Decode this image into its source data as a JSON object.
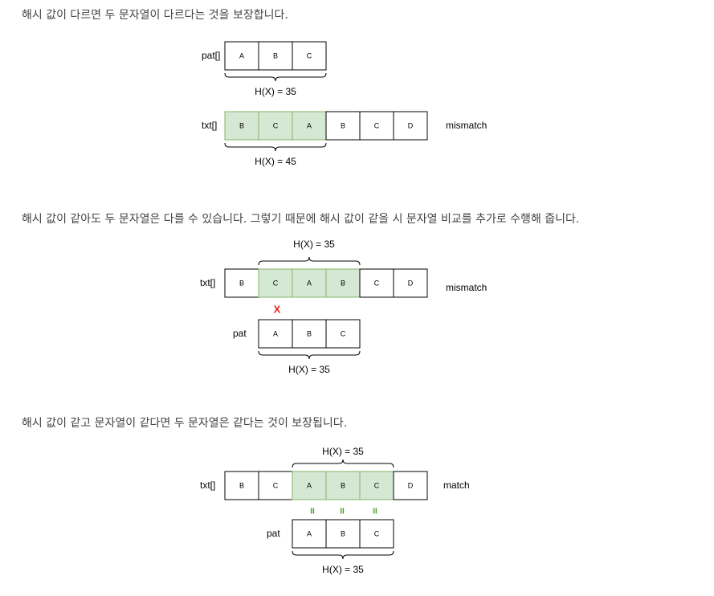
{
  "paragraphs": {
    "p1": "해시 값이 다르면 두 문자열이 다르다는 것을 보장합니다.",
    "p2": "해시 값이 같아도 두 문자열은 다를 수 있습니다. 그렇기 때문에 해시 값이 같을 시 문자열 비교를 추가로 수행해 줍니다.",
    "p3": "해시 값이 같고 문자열이 같다면 두 문자열은 같다는 것이 보장됩니다."
  },
  "colors": {
    "highlight": "#d5e8d4",
    "highlight_border": "#82b366",
    "mismatch_mark": "#e0261c",
    "equal_mark": "#4b9e1f"
  },
  "diagram1": {
    "pat_label": "pat[]",
    "pat_cells": [
      "A",
      "B",
      "C"
    ],
    "pat_hash": "H(X) = 35",
    "txt_label": "txt[]",
    "txt_cells": [
      "B",
      "C",
      "A",
      "B",
      "C",
      "D"
    ],
    "txt_highlight": [
      0,
      1,
      2
    ],
    "txt_hash": "H(X) = 45",
    "result": "mismatch"
  },
  "diagram2": {
    "txt_label": "txt[]",
    "txt_cells": [
      "B",
      "C",
      "A",
      "B",
      "C",
      "D"
    ],
    "txt_highlight": [
      1,
      2,
      3
    ],
    "txt_hash": "H(X) = 35",
    "result": "mismatch",
    "mark": "X",
    "pat_label": "pat",
    "pat_cells": [
      "A",
      "B",
      "C"
    ],
    "pat_hash": "H(X) = 35"
  },
  "diagram3": {
    "txt_label": "txt[]",
    "txt_cells": [
      "B",
      "C",
      "A",
      "B",
      "C",
      "D"
    ],
    "txt_highlight": [
      2,
      3,
      4
    ],
    "txt_hash": "H(X) = 35",
    "result": "match",
    "marks": [
      "II",
      "II",
      "II"
    ],
    "pat_label": "pat",
    "pat_cells": [
      "A",
      "B",
      "C"
    ],
    "pat_hash": "H(X) = 35"
  }
}
